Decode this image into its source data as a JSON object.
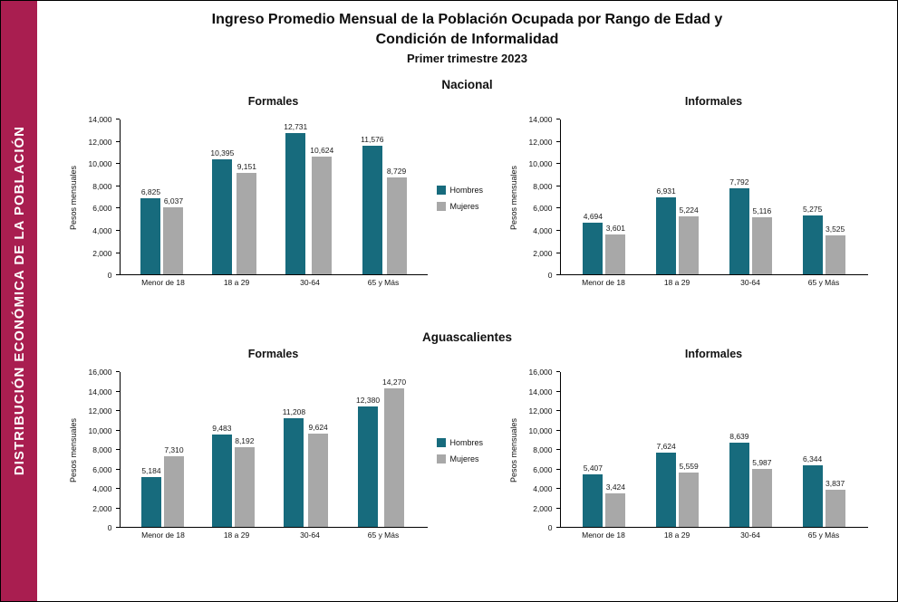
{
  "sidebar": {
    "label": "DISTRIBUCIÓN ECONÓMICA DE LA POBLACIÓN",
    "color": "#A91E50"
  },
  "header": {
    "title_line1": "Ingreso Promedio Mensual de la Población Ocupada por Rango de Edad y",
    "title_line2": "Condición de Informalidad",
    "subtitle": "Primer trimestre 2023"
  },
  "sections": [
    {
      "title": "Nacional"
    },
    {
      "title": "Aguascalientes"
    }
  ],
  "legend": {
    "position": "between-charts",
    "items": [
      {
        "label": "Hombres",
        "color": "#176B7D"
      },
      {
        "label": "Mujeres",
        "color": "#A8A8A8"
      }
    ]
  },
  "chart_data": [
    {
      "type": "bar",
      "section": "Nacional",
      "title": "Formales",
      "ylabel": "Pesos mensuales",
      "categories": [
        "Menor de 18",
        "18 a 29",
        "30-64",
        "65 y Más"
      ],
      "series": [
        {
          "name": "Hombres",
          "values": [
            6825,
            10395,
            12731,
            11576
          ]
        },
        {
          "name": "Mujeres",
          "values": [
            6037,
            9151,
            10624,
            8729
          ]
        }
      ],
      "ylim": [
        0,
        14000
      ],
      "ytick_step": 2000,
      "grid": false
    },
    {
      "type": "bar",
      "section": "Nacional",
      "title": "Informales",
      "ylabel": "Pesos mensuales",
      "categories": [
        "Menor de 18",
        "18 a 29",
        "30-64",
        "65 y Más"
      ],
      "series": [
        {
          "name": "Hombres",
          "values": [
            4694,
            6931,
            7792,
            5275
          ]
        },
        {
          "name": "Mujeres",
          "values": [
            3601,
            5224,
            5116,
            3525
          ]
        }
      ],
      "ylim": [
        0,
        14000
      ],
      "ytick_step": 2000,
      "grid": false
    },
    {
      "type": "bar",
      "section": "Aguascalientes",
      "title": "Formales",
      "ylabel": "Pesos mensuales",
      "categories": [
        "Menor de 18",
        "18 a 29",
        "30-64",
        "65 y Más"
      ],
      "series": [
        {
          "name": "Hombres",
          "values": [
            5184,
            9483,
            11208,
            12380
          ]
        },
        {
          "name": "Mujeres",
          "values": [
            7310,
            8192,
            9624,
            14270
          ]
        }
      ],
      "ylim": [
        0,
        16000
      ],
      "ytick_step": 2000,
      "grid": false
    },
    {
      "type": "bar",
      "section": "Aguascalientes",
      "title": "Informales",
      "ylabel": "Pesos mensuales",
      "categories": [
        "Menor de 18",
        "18 a 29",
        "30-64",
        "65 y Más"
      ],
      "series": [
        {
          "name": "Hombres",
          "values": [
            5407,
            7624,
            8639,
            6344
          ]
        },
        {
          "name": "Mujeres",
          "values": [
            3424,
            5559,
            5987,
            3837
          ]
        }
      ],
      "ylim": [
        0,
        16000
      ],
      "ytick_step": 2000,
      "grid": false
    }
  ]
}
